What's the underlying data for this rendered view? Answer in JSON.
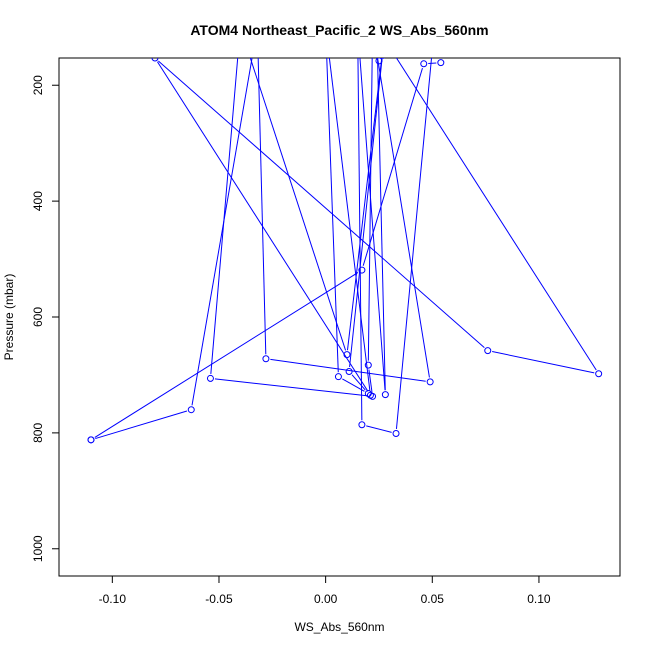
{
  "chart_data": {
    "type": "line",
    "title": "ATOM4 Northeast_Pacific_2 WS_Abs_560nm",
    "xlabel": "WS_Abs_560nm",
    "ylabel": "Pressure (mbar)",
    "xlim": [
      -0.125,
      0.138
    ],
    "ylim": [
      1047,
      153
    ],
    "y_reversed": true,
    "grid": false,
    "legend": "none",
    "x_ticks": [
      -0.1,
      -0.05,
      0.0,
      0.05,
      0.1
    ],
    "x_tick_labels": [
      "-0.10",
      "-0.05",
      "0.00",
      "0.05",
      "0.10"
    ],
    "y_ticks": [
      200,
      400,
      600,
      800,
      1000
    ],
    "y_tick_labels": [
      "200",
      "400",
      "600",
      "800",
      "1000"
    ],
    "color": "#0000ff",
    "series": [
      {
        "points": [
          [
            0.054,
            161
          ],
          [
            0.046,
            163
          ],
          [
            0.017,
            519
          ],
          [
            -0.11,
            812
          ],
          [
            -0.11,
            812
          ],
          [
            -0.063,
            760
          ],
          [
            -0.032,
            100
          ],
          [
            -0.028,
            672
          ],
          [
            0.049,
            712
          ],
          [
            0.022,
            100
          ],
          [
            0.02,
            683
          ],
          [
            0.022,
            737
          ],
          [
            -0.054,
            706
          ],
          [
            -0.04,
            100
          ],
          [
            0.01,
            665
          ],
          [
            0.028,
            100
          ],
          [
            0.011,
            694
          ],
          [
            0.02,
            732
          ],
          [
            0.006,
            703
          ],
          [
            0.0,
            100
          ],
          [
            0.021,
            735
          ],
          [
            -0.08,
            153
          ],
          [
            0.076,
            658
          ],
          [
            0.128,
            698
          ],
          [
            0.024,
            100
          ],
          [
            0.028,
            734
          ],
          [
            0.015,
            100
          ],
          [
            0.017,
            786
          ],
          [
            0.033,
            801
          ],
          [
            0.051,
            100
          ],
          [
            0.025,
            158
          ]
        ]
      }
    ]
  }
}
